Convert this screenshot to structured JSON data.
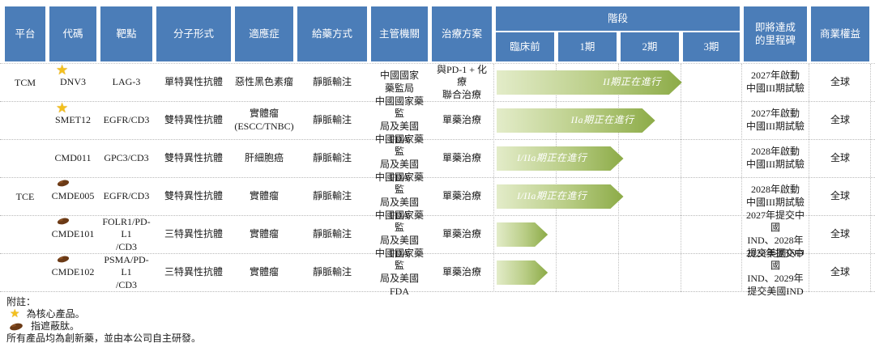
{
  "table": {
    "headers": {
      "platform": "平台",
      "code": "代碼",
      "target": "靶點",
      "molecule": "分子形式",
      "indication": "適應症",
      "administration": "給藥方式",
      "authority": "主管機關",
      "regimen": "治療方案",
      "phase_group": "階段",
      "phases": [
        "臨床前",
        "1期",
        "2期",
        "3期"
      ],
      "milestone": "即將達成\n的里程碑",
      "rights": "商業權益"
    },
    "platform_groups": [
      {
        "label": "TCM",
        "row_span": 1
      },
      {
        "label": "TCE",
        "row_span": 5
      }
    ],
    "rows": [
      {
        "code": "DNV3",
        "icon": "star",
        "target": "LAG-3",
        "molecule": "單特異性抗體",
        "indication": "惡性黑色素瘤",
        "administration": "靜脈輸注",
        "authority": "中國國家\n藥監局",
        "regimen": "與PD-1 + 化療\n聯合治療",
        "phase": {
          "label": "II期正在進行",
          "width_pct": 76,
          "align": "right"
        },
        "milestone": "2027年啟動\n中國III期試驗",
        "rights": "全球"
      },
      {
        "code": "SMET12",
        "icon": "star",
        "target": "EGFR/CD3",
        "molecule": "雙特異性抗體",
        "indication": "實體瘤\n(ESCC/TNBC)",
        "administration": "靜脈輸注",
        "authority": "中國國家藥監\n局及美國FDA",
        "regimen": "單藥治療",
        "phase": {
          "label": "IIa期正在進行",
          "width_pct": 65,
          "align": "right"
        },
        "milestone": "2027年啟動\n中國III期試驗",
        "rights": "全球"
      },
      {
        "code": "CMD011",
        "icon": "none",
        "target": "GPC3/CD3",
        "molecule": "雙特異性抗體",
        "indication": "肝細胞癌",
        "administration": "靜脈輸注",
        "authority": "中國國家藥監\n局及美國FDA",
        "regimen": "單藥治療",
        "phase": {
          "label": "I/IIa期正在進行",
          "width_pct": 52,
          "align": "center"
        },
        "milestone": "2028年啟動\n中國III期試驗",
        "rights": "全球"
      },
      {
        "code": "CMDE005",
        "icon": "peptide",
        "target": "EGFR/CD3",
        "molecule": "雙特異性抗體",
        "indication": "實體瘤",
        "administration": "靜脈輸注",
        "authority": "中國國家藥監\n局及美國FDA",
        "regimen": "單藥治療",
        "phase": {
          "label": "I/IIa期正在進行",
          "width_pct": 52,
          "align": "center"
        },
        "milestone": "2028年啟動\n中國III期試驗",
        "rights": "全球"
      },
      {
        "code": "CMDE101",
        "icon": "peptide",
        "target": "FOLR1/PD-L1\n/CD3",
        "molecule": "三特異性抗體",
        "indication": "實體瘤",
        "administration": "靜脈輸注",
        "authority": "中國國家藥監\n局及美國FDA",
        "regimen": "單藥治療",
        "phase": {
          "label": "",
          "width_pct": 21,
          "align": "center"
        },
        "milestone": "2027年提交中國\nIND、2028年\n提交美國IND",
        "rights": "全球"
      },
      {
        "code": "CMDE102",
        "icon": "peptide",
        "target": "PSMA/PD-L1\n/CD3",
        "molecule": "三特異性抗體",
        "indication": "實體瘤",
        "administration": "靜脈輸注",
        "authority": "中國國家藥監\n局及美國FDA",
        "regimen": "單藥治療",
        "phase": {
          "label": "",
          "width_pct": 21,
          "align": "center"
        },
        "milestone": "2028年提交中國\nIND、2029年\n提交美國IND",
        "rights": "全球"
      }
    ]
  },
  "notes": {
    "title": "附註：",
    "star_note": "為核心產品。",
    "peptide_note": "指遮蔽肽。",
    "general_note": "所有產品均為創新藥，並由本公司自主研發。"
  },
  "colors": {
    "header_blue": "#4b7db8",
    "arrow_green_light": "#e3ecc9",
    "arrow_green_dark": "#8cab47",
    "star_gold": "#f3c01d",
    "peptide_brown": "#6b3a16"
  }
}
